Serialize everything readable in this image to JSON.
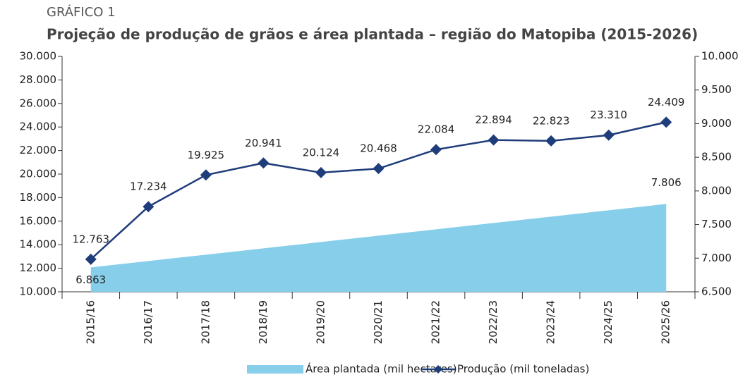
{
  "chart_data": {
    "type": "combo",
    "kicker": "GRÁFICO 1",
    "title": "Projeção de produção de grãos e área plantada – região do Matopiba (2015-2026)",
    "categories": [
      "2015/16",
      "2016/17",
      "2017/18",
      "2018/19",
      "2019/20",
      "2020/21",
      "2021/22",
      "2022/23",
      "2023/24",
      "2024/25",
      "2025/26"
    ],
    "series": [
      {
        "name": "Área plantada (mil hectares)",
        "type": "area",
        "axis": "y2",
        "color": "#87ceeb",
        "values": [
          6863,
          6957,
          7052,
          7146,
          7240,
          7335,
          7429,
          7523,
          7617,
          7712,
          7806
        ],
        "value_labels": [
          "6.863",
          null,
          null,
          null,
          null,
          null,
          null,
          null,
          null,
          null,
          "7.806"
        ]
      },
      {
        "name": "Produção (mil toneladas)",
        "type": "line",
        "color": "#1f3d7a",
        "values": [
          12763,
          17234,
          19925,
          20941,
          20124,
          20468,
          22084,
          22894,
          22823,
          23310,
          24409
        ],
        "value_labels": [
          "12.763",
          "17.234",
          "19.925",
          "20.941",
          "20.124",
          "20.468",
          "22.084",
          "22.894",
          "22.823",
          "23.310",
          "24.409"
        ]
      }
    ],
    "ylim": [
      10000,
      30000
    ],
    "yticks": [
      {
        "value": 10000,
        "label": "10.000"
      },
      {
        "value": 12000,
        "label": "12.000"
      },
      {
        "value": 14000,
        "label": "14.000"
      },
      {
        "value": 16000,
        "label": "16.000"
      },
      {
        "value": 18000,
        "label": "18.000"
      },
      {
        "value": 20000,
        "label": "20.000"
      },
      {
        "value": 22000,
        "label": "22.000"
      },
      {
        "value": 24000,
        "label": "24.000"
      },
      {
        "value": 26000,
        "label": "26.000"
      },
      {
        "value": 28000,
        "label": "28.000"
      },
      {
        "value": 30000,
        "label": "30.000"
      }
    ],
    "y2lim": [
      6500,
      10000
    ],
    "y2ticks": [
      {
        "value": 6500,
        "label": "6.500"
      },
      {
        "value": 7000,
        "label": "7.000"
      },
      {
        "value": 7500,
        "label": "7.500"
      },
      {
        "value": 8000,
        "label": "8.000"
      },
      {
        "value": 8500,
        "label": "8.500"
      },
      {
        "value": 9000,
        "label": "9.000"
      },
      {
        "value": 9500,
        "label": "9.500"
      },
      {
        "value": 10000,
        "label": "10.000"
      }
    ],
    "grid": false
  }
}
